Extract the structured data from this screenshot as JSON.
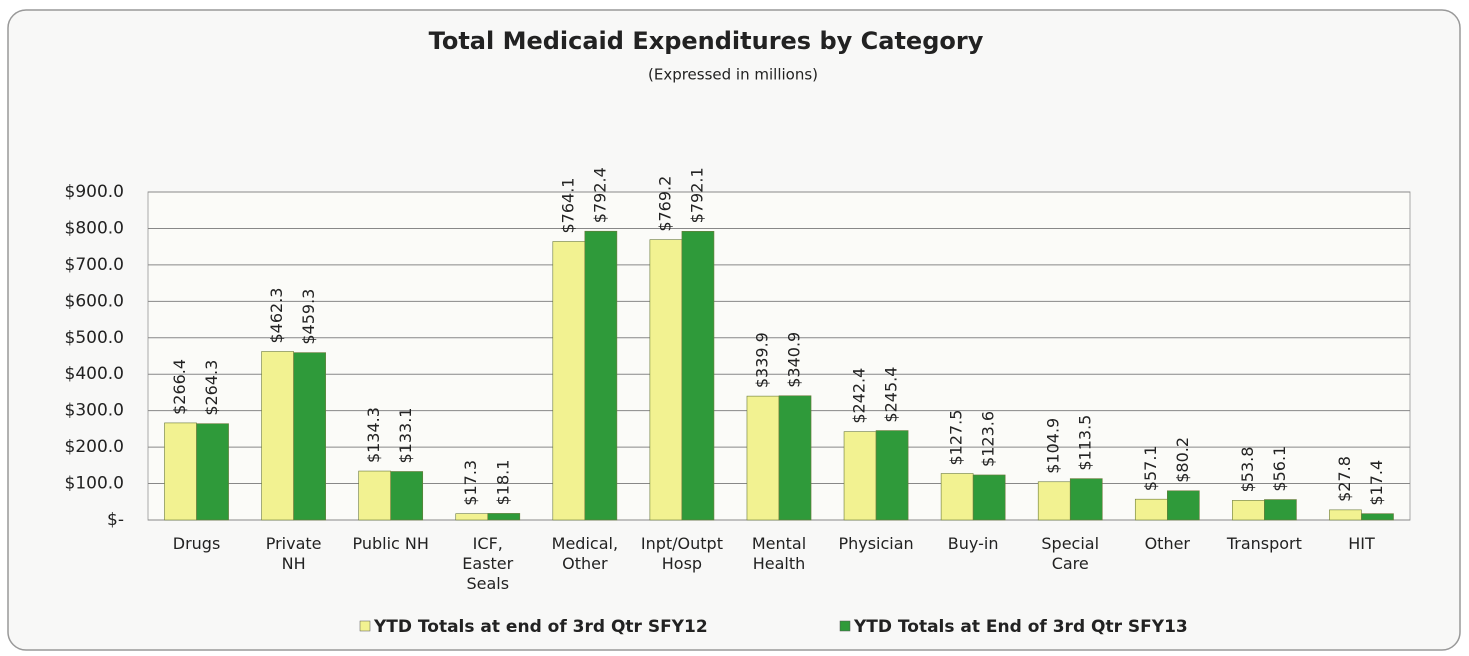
{
  "chart_data": {
    "type": "bar",
    "title": "Total Medicaid Expenditures by Category",
    "subtitle": "(Expressed in millions)",
    "categories": [
      "Drugs",
      "Private NH",
      "Public NH",
      "ICF, Easter Seals",
      "Medical, Other",
      "Inpt/Outpt Hosp",
      "Mental Health",
      "Physician",
      "Buy-in",
      "Special Care",
      "Other",
      "Transport",
      "HIT"
    ],
    "series": [
      {
        "name": "YTD Totals at end of 3rd Qtr SFY12",
        "color": "#f2f291",
        "values": [
          266.4,
          462.3,
          134.3,
          17.3,
          764.1,
          769.2,
          339.9,
          242.4,
          127.5,
          104.9,
          57.1,
          53.8,
          27.8
        ],
        "value_labels": [
          "$266.4",
          "$462.3",
          "$134.3",
          "$17.3",
          "$764.1",
          "$769.2",
          "$339.9",
          "$242.4",
          "$127.5",
          "$104.9",
          "$57.1",
          "$53.8",
          "$27.8"
        ]
      },
      {
        "name": "YTD Totals at End of 3rd Qtr SFY13",
        "color": "#2f9a3a",
        "values": [
          264.3,
          459.3,
          133.1,
          18.1,
          792.4,
          792.1,
          340.9,
          245.4,
          123.6,
          113.5,
          80.2,
          56.1,
          17.4
        ],
        "value_labels": [
          "$264.3",
          "$459.3",
          "$133.1",
          "$18.1",
          "$792.4",
          "$792.1",
          "$340.9",
          "$245.4",
          "$123.6",
          "$113.5",
          "$80.2",
          "$56.1",
          "$17.4"
        ]
      }
    ],
    "ylim": [
      0,
      900
    ],
    "yticks": [
      {
        "value": 0,
        "label": "$-"
      },
      {
        "value": 100,
        "label": "$100.0"
      },
      {
        "value": 200,
        "label": "$200.0"
      },
      {
        "value": 300,
        "label": "$300.0"
      },
      {
        "value": 400,
        "label": "$400.0"
      },
      {
        "value": 500,
        "label": "$500.0"
      },
      {
        "value": 600,
        "label": "$600.0"
      },
      {
        "value": 700,
        "label": "$700.0"
      },
      {
        "value": 800,
        "label": "$800.0"
      },
      {
        "value": 900,
        "label": "$900.0"
      }
    ],
    "grid": true
  }
}
